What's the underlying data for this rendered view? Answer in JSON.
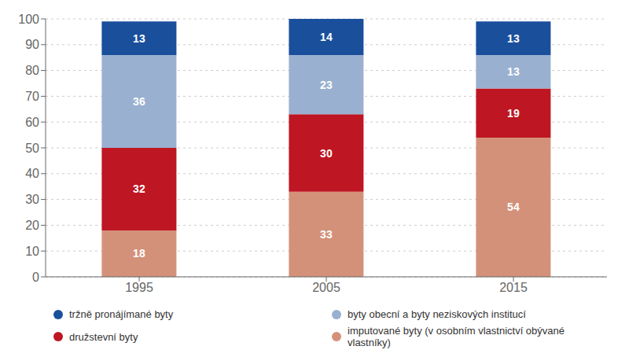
{
  "chart_data": {
    "type": "bar",
    "stacked": true,
    "categories": [
      "1995",
      "2005",
      "2015"
    ],
    "series": [
      {
        "name": "imputované byty (v osobním vlastnictví obývané vlastníky)",
        "color": "#d4917a",
        "values": [
          18,
          33,
          54
        ]
      },
      {
        "name": "družstevní byty",
        "color": "#be1622",
        "values": [
          32,
          30,
          19
        ]
      },
      {
        "name": "byty obecní a byty neziskových institucí",
        "color": "#9ab0d0",
        "values": [
          36,
          23,
          13
        ]
      },
      {
        "name": "tržně pronájímané byty",
        "color": "#1a4f9c",
        "values": [
          13,
          14,
          13
        ]
      }
    ],
    "ylim": [
      0,
      100
    ],
    "yticks": [
      0,
      10,
      20,
      30,
      40,
      50,
      60,
      70,
      80,
      90,
      100
    ],
    "grid": true,
    "data_labels": true,
    "legend": "bottom"
  }
}
